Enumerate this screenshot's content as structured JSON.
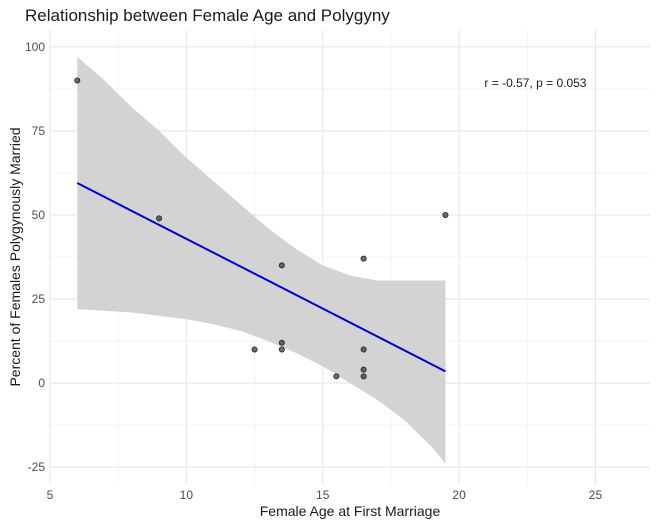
{
  "chart_data": {
    "type": "scatter",
    "title": "Relationship between Female Age and Polygyny",
    "xlabel": "Female Age at First Marriage",
    "ylabel": "Percent of Females Polygynously Married",
    "xlim": [
      5,
      27
    ],
    "ylim": [
      -30,
      105
    ],
    "x_ticks": [
      5,
      10,
      15,
      20,
      25
    ],
    "y_ticks": [
      -25,
      0,
      25,
      50,
      75,
      100
    ],
    "grid": true,
    "points": [
      {
        "x": 6,
        "y": 90
      },
      {
        "x": 9,
        "y": 49
      },
      {
        "x": 12.5,
        "y": 10
      },
      {
        "x": 13.5,
        "y": 35
      },
      {
        "x": 13.5,
        "y": 12
      },
      {
        "x": 13.5,
        "y": 10
      },
      {
        "x": 15.5,
        "y": 2
      },
      {
        "x": 16.5,
        "y": 37
      },
      {
        "x": 16.5,
        "y": 10
      },
      {
        "x": 16.5,
        "y": 4
      },
      {
        "x": 16.5,
        "y": 2
      },
      {
        "x": 19.5,
        "y": 50
      }
    ],
    "fit_line": {
      "x": [
        6,
        19.5
      ],
      "y": [
        59.5,
        3.5
      ],
      "color": "#0000cc"
    },
    "confidence_band": {
      "x": [
        6,
        7,
        8,
        9,
        10,
        11,
        12,
        13,
        14,
        15,
        16,
        17,
        18,
        19,
        19.5
      ],
      "upper": [
        97,
        90,
        82,
        75,
        67,
        60,
        53,
        46,
        40,
        35,
        32,
        30.5,
        30.5,
        30.5,
        30.5
      ],
      "lower": [
        22,
        21.5,
        21,
        20,
        19,
        17.5,
        15.5,
        12.5,
        9,
        5,
        0,
        -5,
        -11,
        -19,
        -24
      ],
      "color": "#d3d3d3"
    },
    "annotation": {
      "text": "r = -0.57, p = 0.053",
      "x": 22.8,
      "y": 88
    }
  }
}
